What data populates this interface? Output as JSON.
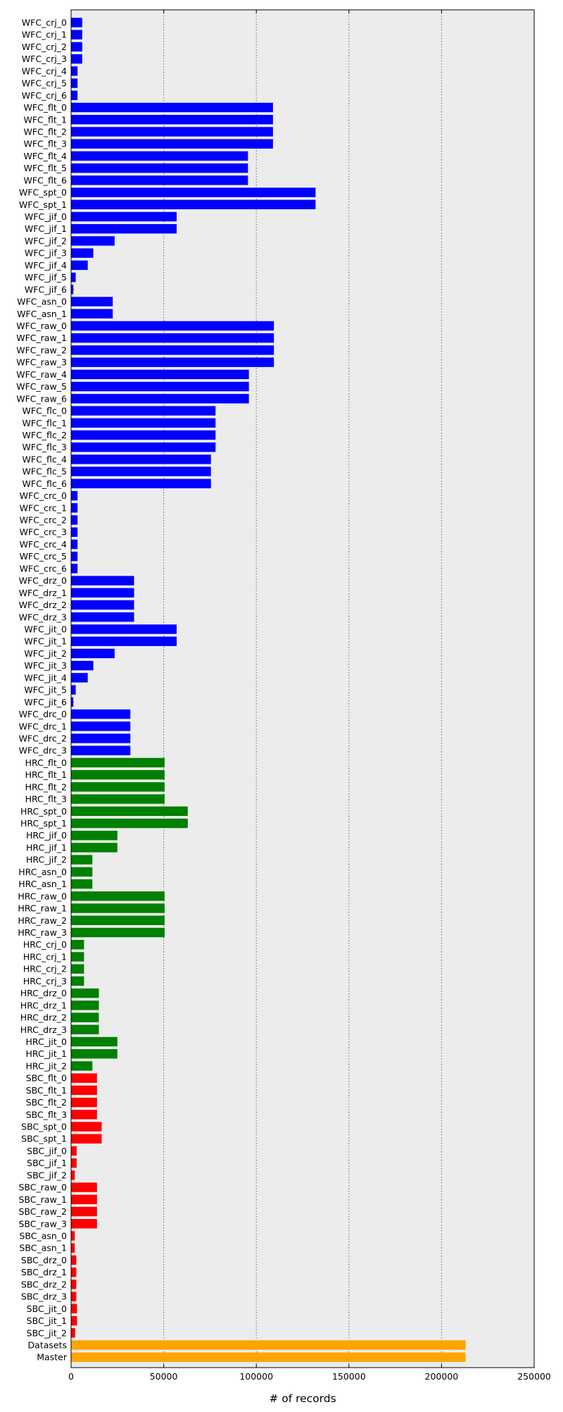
{
  "chart_data": {
    "type": "bar",
    "orientation": "horizontal",
    "xlabel": "# of records",
    "ylabel": "",
    "xlim": [
      0,
      250000
    ],
    "xticks": [
      0,
      50000,
      100000,
      150000,
      200000,
      250000
    ],
    "xtick_labels": [
      "0",
      "50000",
      "100000",
      "150000",
      "200000",
      "250000"
    ],
    "grid": "vertical dotted",
    "legend": "none",
    "background_color": "#ececec",
    "colors": {
      "WFC": "#0000ff",
      "HRC": "#008000",
      "SBC": "#ff0000",
      "summary": "#ffa500"
    },
    "categories": [
      "WFC_crj_0",
      "WFC_crj_1",
      "WFC_crj_2",
      "WFC_crj_3",
      "WFC_crj_4",
      "WFC_crj_5",
      "WFC_crj_6",
      "WFC_flt_0",
      "WFC_flt_1",
      "WFC_flt_2",
      "WFC_flt_3",
      "WFC_flt_4",
      "WFC_flt_5",
      "WFC_flt_6",
      "WFC_spt_0",
      "WFC_spt_1",
      "WFC_jif_0",
      "WFC_jif_1",
      "WFC_jif_2",
      "WFC_jif_3",
      "WFC_jif_4",
      "WFC_jif_5",
      "WFC_jif_6",
      "WFC_asn_0",
      "WFC_asn_1",
      "WFC_raw_0",
      "WFC_raw_1",
      "WFC_raw_2",
      "WFC_raw_3",
      "WFC_raw_4",
      "WFC_raw_5",
      "WFC_raw_6",
      "WFC_flc_0",
      "WFC_flc_1",
      "WFC_flc_2",
      "WFC_flc_3",
      "WFC_flc_4",
      "WFC_flc_5",
      "WFC_flc_6",
      "WFC_crc_0",
      "WFC_crc_1",
      "WFC_crc_2",
      "WFC_crc_3",
      "WFC_crc_4",
      "WFC_crc_5",
      "WFC_crc_6",
      "WFC_drz_0",
      "WFC_drz_1",
      "WFC_drz_2",
      "WFC_drz_3",
      "WFC_jit_0",
      "WFC_jit_1",
      "WFC_jit_2",
      "WFC_jit_3",
      "WFC_jit_4",
      "WFC_jit_5",
      "WFC_jit_6",
      "WFC_drc_0",
      "WFC_drc_1",
      "WFC_drc_2",
      "WFC_drc_3",
      "HRC_flt_0",
      "HRC_flt_1",
      "HRC_flt_2",
      "HRC_flt_3",
      "HRC_spt_0",
      "HRC_spt_1",
      "HRC_jif_0",
      "HRC_jif_1",
      "HRC_jif_2",
      "HRC_asn_0",
      "HRC_asn_1",
      "HRC_raw_0",
      "HRC_raw_1",
      "HRC_raw_2",
      "HRC_raw_3",
      "HRC_crj_0",
      "HRC_crj_1",
      "HRC_crj_2",
      "HRC_crj_3",
      "HRC_drz_0",
      "HRC_drz_1",
      "HRC_drz_2",
      "HRC_drz_3",
      "HRC_jit_0",
      "HRC_jit_1",
      "HRC_jit_2",
      "SBC_flt_0",
      "SBC_flt_1",
      "SBC_flt_2",
      "SBC_flt_3",
      "SBC_spt_0",
      "SBC_spt_1",
      "SBC_jif_0",
      "SBC_jif_1",
      "SBC_jif_2",
      "SBC_raw_0",
      "SBC_raw_1",
      "SBC_raw_2",
      "SBC_raw_3",
      "SBC_asn_0",
      "SBC_asn_1",
      "SBC_drz_0",
      "SBC_drz_1",
      "SBC_drz_2",
      "SBC_drz_3",
      "SBC_jit_0",
      "SBC_jit_1",
      "SBC_jit_2",
      "Datasets",
      "Master"
    ],
    "values": [
      6000,
      6000,
      6000,
      6000,
      3500,
      3500,
      3500,
      109000,
      109000,
      109000,
      109000,
      95500,
      95500,
      95500,
      132000,
      132000,
      57000,
      57000,
      23500,
      12000,
      9000,
      2500,
      1200,
      22500,
      22500,
      109500,
      109500,
      109500,
      109500,
      96000,
      96000,
      96000,
      78000,
      78000,
      78000,
      78000,
      75500,
      75500,
      75500,
      3500,
      3500,
      3500,
      3500,
      3500,
      3500,
      3500,
      34000,
      34000,
      34000,
      34000,
      57000,
      57000,
      23500,
      12000,
      9000,
      2500,
      1200,
      32000,
      32000,
      32000,
      32000,
      50500,
      50500,
      50500,
      50500,
      63000,
      63000,
      25000,
      25000,
      11500,
      11500,
      11500,
      50500,
      50500,
      50500,
      50500,
      7000,
      7000,
      7000,
      7000,
      15000,
      15000,
      15000,
      15000,
      25000,
      25000,
      11500,
      14000,
      14000,
      14000,
      14000,
      16500,
      16500,
      3000,
      3000,
      2000,
      14000,
      14000,
      14000,
      14000,
      2000,
      2000,
      2800,
      2800,
      2800,
      2800,
      3200,
      3200,
      2200,
      213000,
      213000
    ],
    "groups": [
      "WFC",
      "WFC",
      "WFC",
      "WFC",
      "WFC",
      "WFC",
      "WFC",
      "WFC",
      "WFC",
      "WFC",
      "WFC",
      "WFC",
      "WFC",
      "WFC",
      "WFC",
      "WFC",
      "WFC",
      "WFC",
      "WFC",
      "WFC",
      "WFC",
      "WFC",
      "WFC",
      "WFC",
      "WFC",
      "WFC",
      "WFC",
      "WFC",
      "WFC",
      "WFC",
      "WFC",
      "WFC",
      "WFC",
      "WFC",
      "WFC",
      "WFC",
      "WFC",
      "WFC",
      "WFC",
      "WFC",
      "WFC",
      "WFC",
      "WFC",
      "WFC",
      "WFC",
      "WFC",
      "WFC",
      "WFC",
      "WFC",
      "WFC",
      "WFC",
      "WFC",
      "WFC",
      "WFC",
      "WFC",
      "WFC",
      "WFC",
      "WFC",
      "WFC",
      "WFC",
      "WFC",
      "HRC",
      "HRC",
      "HRC",
      "HRC",
      "HRC",
      "HRC",
      "HRC",
      "HRC",
      "HRC",
      "HRC",
      "HRC",
      "HRC",
      "HRC",
      "HRC",
      "HRC",
      "HRC",
      "HRC",
      "HRC",
      "HRC",
      "HRC",
      "HRC",
      "HRC",
      "HRC",
      "HRC",
      "HRC",
      "HRC",
      "SBC",
      "SBC",
      "SBC",
      "SBC",
      "SBC",
      "SBC",
      "SBC",
      "SBC",
      "SBC",
      "SBC",
      "SBC",
      "SBC",
      "SBC",
      "SBC",
      "SBC",
      "SBC",
      "SBC",
      "SBC",
      "SBC",
      "SBC",
      "SBC",
      "SBC",
      "summary",
      "summary"
    ]
  }
}
